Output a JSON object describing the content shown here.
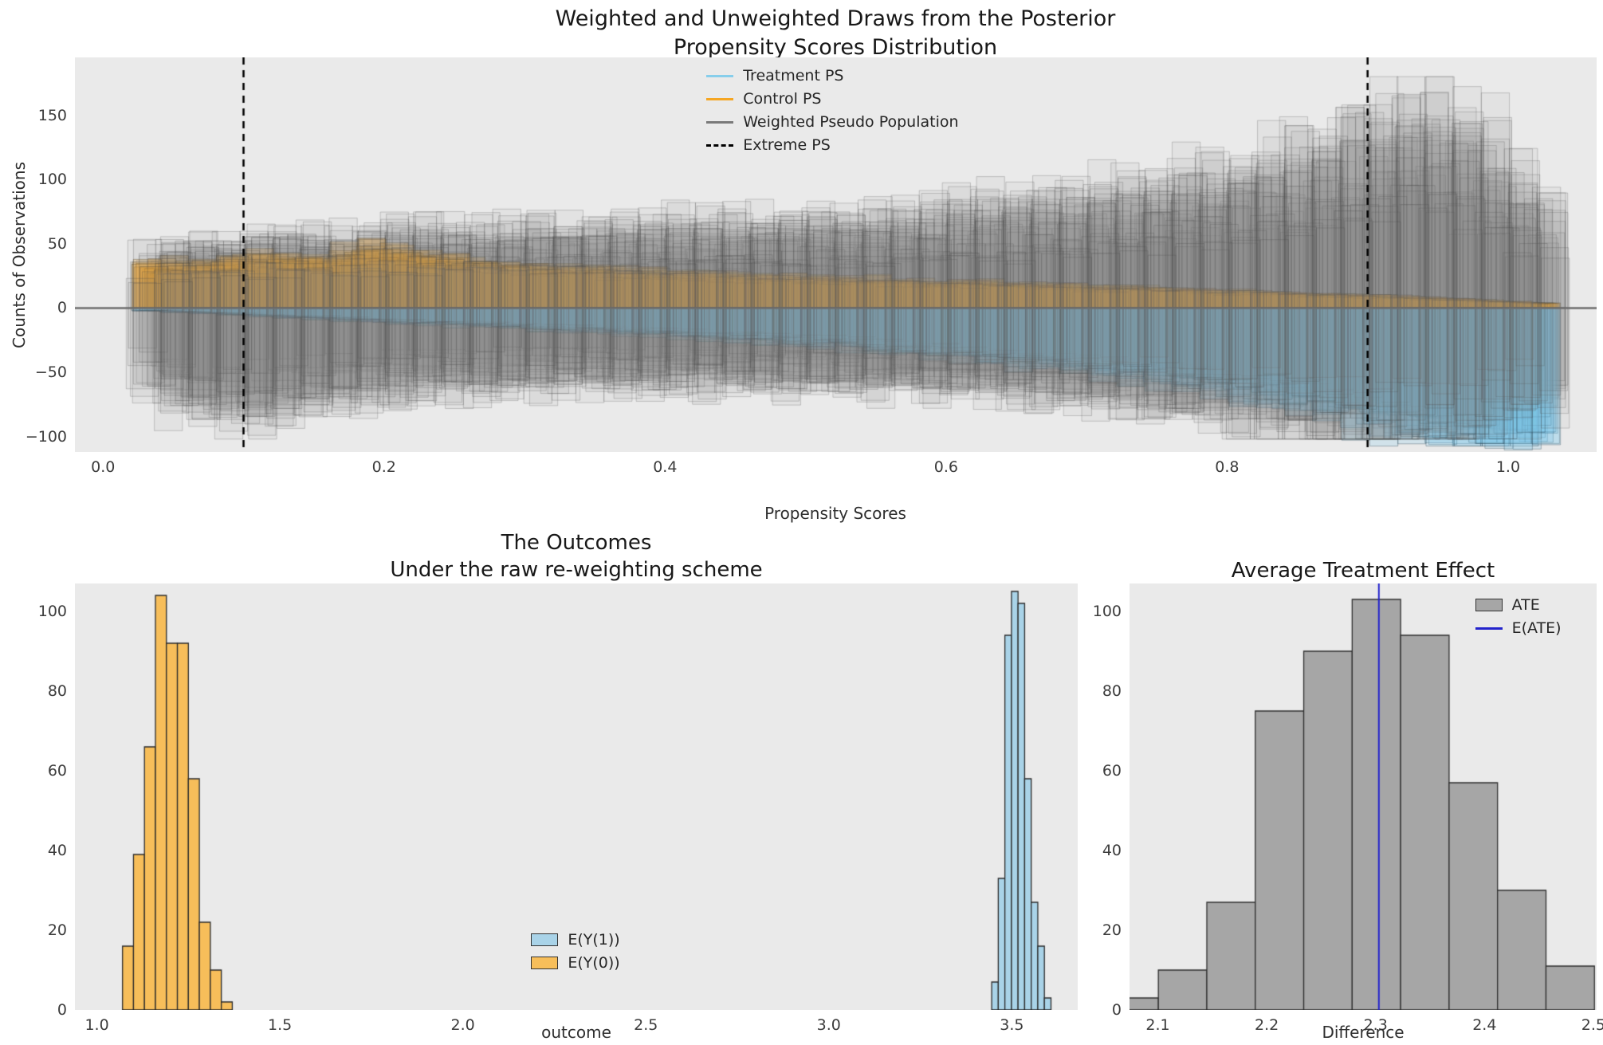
{
  "figure": {
    "bg": "#ffffff",
    "axes_bg": "#eaeaea"
  },
  "chart_data": [
    {
      "id": "ps",
      "type": "mirror_histogram_draws",
      "title_line1": "Weighted and Unweighted Draws from the Posterior",
      "title_line2": "Propensity Scores Distribution",
      "xlabel": "Propensity Scores",
      "ylabel": "Counts of Observations",
      "xlim": [
        -0.02,
        1.063
      ],
      "ylim": [
        -112,
        195
      ],
      "xticks": [
        0.0,
        0.2,
        0.4,
        0.6,
        0.8,
        1.0
      ],
      "xtick_labels": [
        "0.0",
        "0.2",
        "0.4",
        "0.6",
        "0.8",
        "1.0"
      ],
      "yticks": [
        150,
        100,
        50,
        0,
        -50,
        -100
      ],
      "ytick_labels": [
        "150",
        "100",
        "50",
        "0",
        "−50",
        "−100"
      ],
      "zero_line": true,
      "extreme_ps": [
        0.1,
        0.9
      ],
      "bin_start": 0.03,
      "bin_width": 0.02,
      "n_draws_colored": 16,
      "n_draws_gray": 26,
      "colors": {
        "treatment": "#87CEEB",
        "control": "#F5A623",
        "weighted": "#7a7a7a",
        "extreme": "#000000"
      },
      "control_mean": [
        34,
        35,
        36,
        38,
        40,
        41,
        39,
        43,
        47,
        44,
        40,
        37,
        34,
        33,
        31,
        31,
        29,
        28,
        27,
        27,
        26,
        25,
        24,
        24,
        23,
        22,
        22,
        21,
        20,
        20,
        19,
        18,
        18,
        17,
        16,
        16,
        15,
        14,
        13,
        13,
        12,
        11,
        10,
        10,
        9,
        8,
        7,
        6,
        5,
        4
      ],
      "treatment_mean": [
        2,
        3,
        4,
        5,
        6,
        7,
        8,
        9,
        10,
        11,
        12,
        13,
        14,
        15,
        16,
        17,
        18,
        19,
        20,
        21,
        22,
        24,
        25,
        27,
        28,
        30,
        32,
        34,
        36,
        38,
        40,
        42,
        44,
        47,
        50,
        52,
        55,
        58,
        62,
        66,
        70,
        74,
        80,
        86,
        92,
        98,
        104,
        108,
        110,
        108
      ],
      "weighted_above_mean": [
        30,
        32,
        34,
        35,
        36,
        36,
        37,
        38,
        40,
        40,
        40,
        40,
        40,
        40,
        41,
        41,
        42,
        42,
        43,
        43,
        44,
        44,
        45,
        45,
        46,
        47,
        48,
        49,
        50,
        52,
        54,
        55,
        57,
        59,
        61,
        63,
        66,
        68,
        71,
        74,
        78,
        82,
        88,
        94,
        100,
        105,
        100,
        88,
        70,
        55
      ],
      "weighted_below_mean": [
        45,
        55,
        60,
        62,
        58,
        55,
        52,
        50,
        48,
        46,
        45,
        44,
        44,
        43,
        43,
        42,
        42,
        42,
        42,
        42,
        42,
        42,
        42,
        43,
        43,
        44,
        44,
        45,
        45,
        46,
        47,
        48,
        49,
        50,
        52,
        53,
        55,
        57,
        59,
        62,
        65,
        68,
        71,
        73,
        74,
        73,
        70,
        65,
        60,
        55
      ],
      "legend": {
        "x": 0.415,
        "y": 0.025,
        "items": [
          {
            "label": "Treatment PS",
            "swatch": "line",
            "color": "#87CEEB"
          },
          {
            "label": "Control PS",
            "swatch": "line",
            "color": "#F5A623"
          },
          {
            "label": "Weighted Pseudo Population",
            "swatch": "line",
            "color": "#7a7a7a"
          },
          {
            "label": "Extreme PS",
            "swatch": "dashed-line",
            "color": "#000000"
          }
        ]
      }
    },
    {
      "id": "outcomes",
      "type": "histogram",
      "title_line1": "The Outcomes",
      "title_line2": "Under the raw re-weighting scheme",
      "xlabel": "outcome",
      "ylabel": "",
      "xlim": [
        0.94,
        3.68
      ],
      "ylim": [
        0,
        107
      ],
      "xticks": [
        1.0,
        1.5,
        2.0,
        2.5,
        3.0,
        3.5
      ],
      "xtick_labels": [
        "1.0",
        "1.5",
        "2.0",
        "2.5",
        "3.0",
        "3.5"
      ],
      "yticks": [
        0,
        20,
        40,
        60,
        80,
        100
      ],
      "ytick_labels": [
        "0",
        "20",
        "40",
        "60",
        "80",
        "100"
      ],
      "series": [
        {
          "name": "E(Y(0))",
          "color": "#F7BE5A",
          "edge": "#2b2b2b",
          "bin_start": 1.07,
          "bin_width": 0.03,
          "values": [
            16,
            39,
            66,
            104,
            92,
            92,
            58,
            22,
            10,
            2
          ]
        },
        {
          "name": "E(Y(1))",
          "color": "#A9D3E8",
          "edge": "#2b2b2b",
          "bin_start": 3.445,
          "bin_width": 0.018,
          "values": [
            7,
            33,
            94,
            105,
            102,
            58,
            27,
            16,
            3
          ]
        }
      ],
      "legend": {
        "x": 0.455,
        "y": 0.815,
        "items": [
          {
            "label": "E(Y(1))",
            "swatch": "patch",
            "color": "#A9D3E8"
          },
          {
            "label": "E(Y(0))",
            "swatch": "patch",
            "color": "#F7BE5A"
          }
        ]
      }
    },
    {
      "id": "ate",
      "type": "histogram",
      "title_line1": "Average Treatment Effect",
      "title_line2": "",
      "xlabel": "Difference",
      "ylabel": "",
      "xlim": [
        2.074,
        2.503
      ],
      "ylim": [
        0,
        107
      ],
      "xticks": [
        2.1,
        2.2,
        2.3,
        2.4,
        2.5
      ],
      "xtick_labels": [
        "2.1",
        "2.2",
        "2.3",
        "2.4",
        "2.5"
      ],
      "yticks": [
        0,
        20,
        40,
        60,
        80,
        100
      ],
      "ytick_labels": [
        "0",
        "20",
        "40",
        "60",
        "80",
        "100"
      ],
      "series": [
        {
          "name": "ATE",
          "color": "#a6a6a6",
          "edge": "#303030",
          "bin_start": 2.056,
          "bin_width": 0.0445,
          "values": [
            3,
            10,
            27,
            75,
            90,
            103,
            94,
            57,
            30,
            11
          ]
        }
      ],
      "vline": {
        "x": 2.303,
        "color": "#2323cc",
        "label": "E(ATE)"
      },
      "legend": {
        "x": 0.74,
        "y": 0.03,
        "items": [
          {
            "label": "ATE",
            "swatch": "patch",
            "color": "#a6a6a6"
          },
          {
            "label": "E(ATE)",
            "swatch": "line",
            "color": "#2323cc"
          }
        ]
      }
    }
  ]
}
